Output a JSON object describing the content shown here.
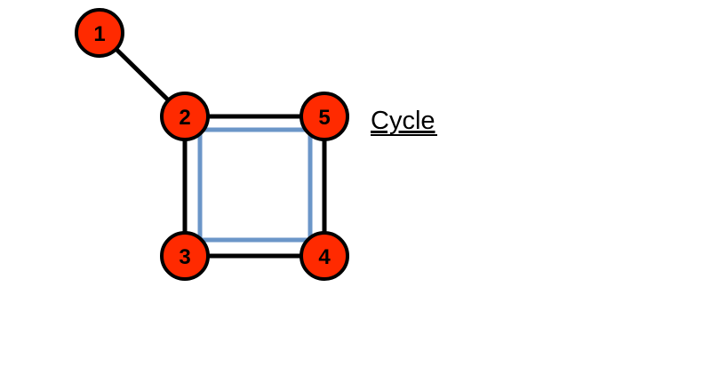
{
  "diagram": {
    "nodes": [
      {
        "id": "1",
        "label": "1"
      },
      {
        "id": "2",
        "label": "2"
      },
      {
        "id": "3",
        "label": "3"
      },
      {
        "id": "4",
        "label": "4"
      },
      {
        "id": "5",
        "label": "5"
      }
    ],
    "edges": [
      {
        "from": "1",
        "to": "2"
      },
      {
        "from": "2",
        "to": "5"
      },
      {
        "from": "2",
        "to": "3"
      },
      {
        "from": "3",
        "to": "4"
      },
      {
        "from": "5",
        "to": "4"
      }
    ],
    "highlighted_cycle": [
      "2",
      "5",
      "4",
      "3"
    ],
    "cycle_label": "Cycle",
    "colors": {
      "node_fill": "#ff2a00",
      "edge": "#000000",
      "cycle_highlight": "#6b96c8",
      "text": "#000000"
    }
  }
}
